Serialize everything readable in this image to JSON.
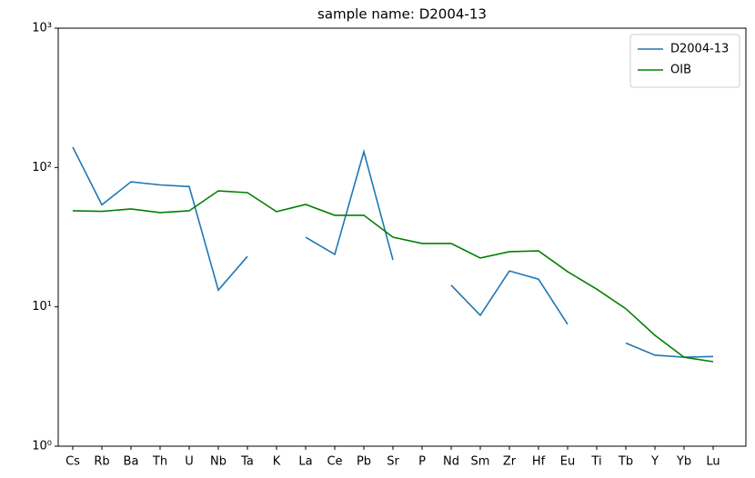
{
  "chart_data": {
    "type": "line",
    "title": "sample name: D2004-13",
    "categories": [
      "Cs",
      "Rb",
      "Ba",
      "Th",
      "U",
      "Nb",
      "Ta",
      "K",
      "La",
      "Ce",
      "Pb",
      "Sr",
      "P",
      "Nd",
      "Sm",
      "Zr",
      "Hf",
      "Eu",
      "Ti",
      "Tb",
      "Y",
      "Yb",
      "Lu"
    ],
    "series": [
      {
        "name": "D2004-13",
        "color": "#1f77b4",
        "values": [
          140,
          54,
          79,
          75,
          73,
          13.2,
          23,
          null,
          31.6,
          23.8,
          130,
          21.7,
          null,
          14.3,
          8.7,
          18.1,
          15.8,
          7.5,
          null,
          5.5,
          4.5,
          4.35,
          4.4
        ]
      },
      {
        "name": "OIB",
        "color": "#008000",
        "values": [
          48.9,
          48.5,
          50.4,
          47.5,
          48.9,
          68,
          66,
          48.2,
          54.3,
          45.4,
          45.4,
          31.6,
          28.5,
          28.5,
          22.4,
          24.9,
          25.2,
          17.9,
          13.4,
          9.7,
          6.25,
          4.35,
          4.04
        ]
      }
    ],
    "log_scale": true,
    "ylim": [
      1,
      1000
    ],
    "yticks": [
      {
        "value": 1,
        "label": "10⁰"
      },
      {
        "value": 10,
        "label": "10¹"
      },
      {
        "value": 100,
        "label": "10²"
      },
      {
        "value": 1000,
        "label": "10³"
      }
    ],
    "legend": "upper right"
  }
}
